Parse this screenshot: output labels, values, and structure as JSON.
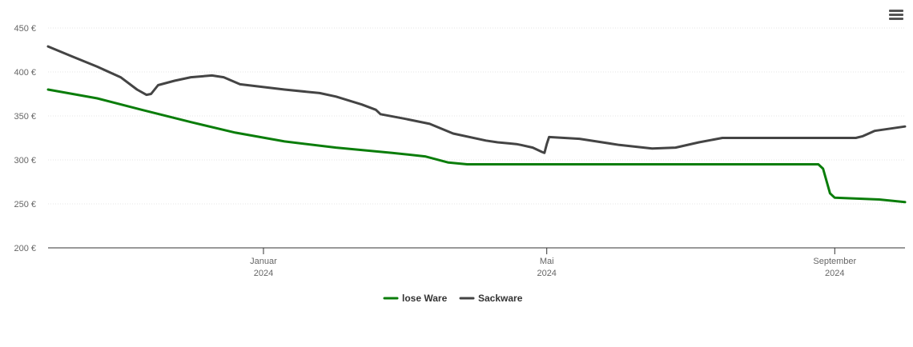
{
  "chart_data": {
    "type": "line",
    "title": "",
    "xlabel": "",
    "ylabel": "",
    "ylim": [
      200,
      450
    ],
    "xlim": [
      "2023-10-01",
      "2024-10-01"
    ],
    "yticks": [
      "200 €",
      "250 €",
      "300 €",
      "350 €",
      "400 €",
      "450 €"
    ],
    "xticks": [
      {
        "date": "2024-01-01",
        "line1": "Januar",
        "line2": "2024"
      },
      {
        "date": "2024-05-01",
        "line1": "Mai",
        "line2": "2024"
      },
      {
        "date": "2024-09-01",
        "line1": "September",
        "line2": "2024"
      }
    ],
    "grid": true,
    "legend_position": "bottom-center",
    "series": [
      {
        "name": "lose Ware",
        "color": "#0a7d0a",
        "points": [
          [
            "2023-10-01",
            380
          ],
          [
            "2023-10-22",
            370
          ],
          [
            "2023-11-10",
            357
          ],
          [
            "2023-12-01",
            343
          ],
          [
            "2023-12-20",
            331
          ],
          [
            "2024-01-10",
            321
          ],
          [
            "2024-02-01",
            314
          ],
          [
            "2024-02-25",
            308
          ],
          [
            "2024-03-10",
            304
          ],
          [
            "2024-03-20",
            297
          ],
          [
            "2024-03-28",
            295
          ],
          [
            "2024-04-15",
            295
          ],
          [
            "2024-06-01",
            295
          ],
          [
            "2024-07-01",
            295
          ],
          [
            "2024-08-10",
            295
          ],
          [
            "2024-08-25",
            295
          ],
          [
            "2024-08-27",
            290
          ],
          [
            "2024-08-30",
            262
          ],
          [
            "2024-09-01",
            257
          ],
          [
            "2024-09-20",
            255
          ],
          [
            "2024-10-01",
            252
          ]
        ]
      },
      {
        "name": "Sackware",
        "color": "#444444",
        "points": [
          [
            "2023-10-01",
            429
          ],
          [
            "2023-10-11",
            418
          ],
          [
            "2023-10-22",
            406
          ],
          [
            "2023-11-01",
            394
          ],
          [
            "2023-11-08",
            380
          ],
          [
            "2023-11-12",
            374
          ],
          [
            "2023-11-14",
            375
          ],
          [
            "2023-11-17",
            385
          ],
          [
            "2023-11-24",
            390
          ],
          [
            "2023-12-01",
            394
          ],
          [
            "2023-12-10",
            396
          ],
          [
            "2023-12-15",
            394
          ],
          [
            "2023-12-22",
            386
          ],
          [
            "2024-01-10",
            380
          ],
          [
            "2024-01-25",
            376
          ],
          [
            "2024-02-01",
            372
          ],
          [
            "2024-02-12",
            363
          ],
          [
            "2024-02-18",
            357
          ],
          [
            "2024-02-20",
            352
          ],
          [
            "2024-03-01",
            347
          ],
          [
            "2024-03-12",
            341
          ],
          [
            "2024-03-22",
            330
          ],
          [
            "2024-04-05",
            322
          ],
          [
            "2024-04-20",
            317
          ],
          [
            "2024-04-10",
            320
          ],
          [
            "2024-04-18",
            318
          ],
          [
            "2024-04-25",
            314
          ],
          [
            "2024-04-29",
            309
          ],
          [
            "2024-04-30",
            308
          ],
          [
            "2024-05-01",
            318
          ],
          [
            "2024-05-02",
            326
          ],
          [
            "2024-05-15",
            324
          ],
          [
            "2024-06-01",
            317
          ],
          [
            "2024-06-15",
            313
          ],
          [
            "2024-06-25",
            314
          ],
          [
            "2024-07-05",
            320
          ],
          [
            "2024-07-15",
            325
          ],
          [
            "2024-08-01",
            325
          ],
          [
            "2024-09-01",
            325
          ],
          [
            "2024-09-10",
            325
          ],
          [
            "2024-09-13",
            327
          ],
          [
            "2024-09-18",
            333
          ],
          [
            "2024-10-01",
            338
          ]
        ]
      }
    ]
  },
  "menu": {
    "icon": "hamburger-menu-icon"
  }
}
